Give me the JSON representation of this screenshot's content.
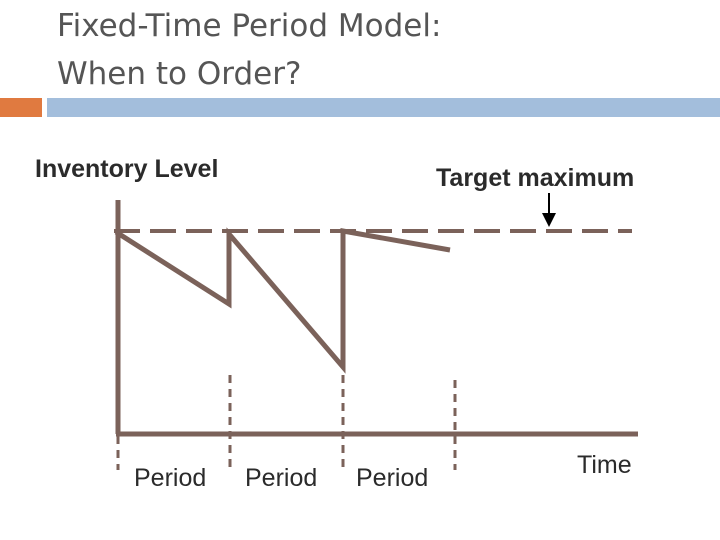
{
  "slide": {
    "title_line1": "Fixed-Time Period Model:",
    "title_line2": "When to Order?"
  },
  "diagram": {
    "y_axis_label": "Inventory Level",
    "target_label": "Target maximum",
    "x_axis_label": "Time",
    "period_labels": [
      "Period",
      "Period",
      "Period"
    ],
    "colors": {
      "line": "#7b625a",
      "text": "#2b2b2b",
      "arrow": "#000000",
      "accent_orange": "#e07a40",
      "accent_blue": "#a3bedc"
    }
  }
}
